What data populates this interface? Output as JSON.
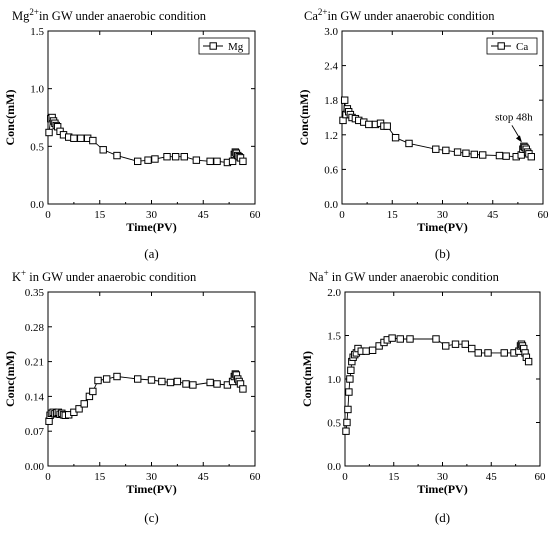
{
  "chart_data": [
    {
      "panel": "(a)",
      "type": "line",
      "title": {
        "ion": "Mg",
        "sup": "2+",
        "rest": "in GW under anaerobic condition"
      },
      "xlabel": "Time(PV)",
      "ylabel": "Conc(mM)",
      "xlim": [
        0,
        60
      ],
      "ylim": [
        0,
        1.5
      ],
      "xticks": [
        "0",
        "15",
        "30",
        "45",
        "60"
      ],
      "yticks": [
        "0.0",
        "0.5",
        "1.0",
        "1.5"
      ],
      "xtick_values": [
        0,
        15,
        30,
        45,
        60
      ],
      "ytick_values": [
        0,
        0.5,
        1.0,
        1.5
      ],
      "legend": "Mg",
      "legend_position": "top-right",
      "grid": false,
      "series": [
        {
          "name": "Mg",
          "x": [
            0.3,
            0.8,
            1.2,
            1.6,
            2.0,
            2.4,
            2.8,
            3.5,
            4.5,
            6,
            7.5,
            9.5,
            11.5,
            13,
            16,
            20,
            26,
            29,
            31,
            34.5,
            37,
            39.5,
            43,
            47,
            49,
            52,
            53.5,
            54,
            54.3,
            54.6,
            55,
            55.4,
            55.8,
            56.5
          ],
          "y": [
            0.62,
            0.74,
            0.75,
            0.72,
            0.7,
            0.68,
            0.67,
            0.63,
            0.6,
            0.58,
            0.57,
            0.57,
            0.57,
            0.55,
            0.47,
            0.42,
            0.37,
            0.38,
            0.39,
            0.41,
            0.41,
            0.41,
            0.38,
            0.37,
            0.37,
            0.36,
            0.37,
            0.43,
            0.45,
            0.44,
            0.42,
            0.41,
            0.4,
            0.37
          ]
        }
      ]
    },
    {
      "panel": "(b)",
      "type": "line",
      "title": {
        "ion": "Ca",
        "sup": "2+",
        "rest": "in GW under anaerobic condition"
      },
      "xlabel": "Time(PV)",
      "ylabel": "Conc(mM)",
      "xlim": [
        0,
        60
      ],
      "ylim": [
        0,
        3.0
      ],
      "xticks": [
        "0",
        "15",
        "30",
        "45",
        "60"
      ],
      "yticks": [
        "0.0",
        "0.6",
        "1.2",
        "1.8",
        "2.4",
        "3.0"
      ],
      "xtick_values": [
        0,
        15,
        30,
        45,
        60
      ],
      "ytick_values": [
        0,
        0.6,
        1.2,
        1.8,
        2.4,
        3.0
      ],
      "legend": "Ca",
      "legend_position": "top-right",
      "grid": false,
      "annotation": {
        "text": "stop 48h",
        "at_x": 54.3,
        "at_y": 1.0
      },
      "series": [
        {
          "name": "Ca",
          "x": [
            0.3,
            0.8,
            1.2,
            1.6,
            2.0,
            2.5,
            3.0,
            4.0,
            5.0,
            6.5,
            8,
            10,
            11.5,
            12.5,
            13.5,
            16,
            20,
            28,
            31,
            34.5,
            37,
            39.5,
            42,
            47,
            49,
            52,
            53.5,
            54,
            54.3,
            54.6,
            55,
            55.4,
            55.8,
            56.5
          ],
          "y": [
            1.45,
            1.8,
            1.55,
            1.65,
            1.6,
            1.55,
            1.5,
            1.48,
            1.45,
            1.42,
            1.38,
            1.38,
            1.4,
            1.35,
            1.35,
            1.15,
            1.05,
            0.95,
            0.93,
            0.9,
            0.88,
            0.86,
            0.85,
            0.84,
            0.83,
            0.82,
            0.85,
            0.95,
            1.0,
            0.98,
            0.95,
            0.9,
            0.87,
            0.82
          ]
        }
      ]
    },
    {
      "panel": "(c)",
      "type": "line",
      "title": {
        "ion": "K",
        "sup": "+",
        "rest": " in GW under anaerobic condition"
      },
      "xlabel": "Time(PV)",
      "ylabel": "Conc(mM)",
      "xlim": [
        0,
        60
      ],
      "ylim": [
        0,
        0.35
      ],
      "xticks": [
        "0",
        "15",
        "30",
        "45",
        "60"
      ],
      "yticks": [
        "0.00",
        "0.07",
        "0.14",
        "0.21",
        "0.28",
        "0.35"
      ],
      "xtick_values": [
        0,
        15,
        30,
        45,
        60
      ],
      "ytick_values": [
        0,
        0.07,
        0.14,
        0.21,
        0.28,
        0.35
      ],
      "grid": false,
      "series": [
        {
          "name": "",
          "x": [
            0.3,
            0.6,
            1.0,
            1.5,
            2.0,
            2.5,
            3.0,
            3.5,
            4.0,
            4.5,
            5.0,
            6.0,
            7.5,
            9.0,
            10.5,
            12,
            13,
            14.5,
            17,
            20,
            26,
            30,
            33,
            35.5,
            37.5,
            40,
            42,
            47,
            49,
            52,
            53.5,
            54,
            54.3,
            54.6,
            55,
            55.4,
            55.8,
            56.5
          ],
          "y": [
            0.09,
            0.102,
            0.106,
            0.108,
            0.105,
            0.107,
            0.108,
            0.104,
            0.106,
            0.103,
            0.102,
            0.103,
            0.108,
            0.115,
            0.125,
            0.14,
            0.15,
            0.172,
            0.175,
            0.18,
            0.175,
            0.173,
            0.17,
            0.168,
            0.17,
            0.165,
            0.163,
            0.168,
            0.165,
            0.163,
            0.17,
            0.18,
            0.185,
            0.183,
            0.175,
            0.17,
            0.165,
            0.155
          ]
        }
      ]
    },
    {
      "panel": "(d)",
      "type": "line",
      "title": {
        "ion": "Na",
        "sup": "+",
        "rest": " in GW under anaerobic condition"
      },
      "xlabel": "Time(PV)",
      "ylabel": "Conc(mM)",
      "xlim": [
        0,
        60
      ],
      "ylim": [
        0,
        2.0
      ],
      "xticks": [
        "0",
        "15",
        "30",
        "45",
        "60"
      ],
      "yticks": [
        "0.0",
        "0.5",
        "1.0",
        "1.5",
        "2.0"
      ],
      "xtick_values": [
        0,
        15,
        30,
        45,
        60
      ],
      "ytick_values": [
        0,
        0.5,
        1.0,
        1.5,
        2.0
      ],
      "grid": false,
      "series": [
        {
          "name": "",
          "x": [
            0.3,
            0.6,
            0.9,
            1.2,
            1.5,
            1.8,
            2.1,
            2.5,
            3.0,
            3.5,
            4.0,
            5.0,
            6.5,
            8.5,
            10.5,
            12,
            13,
            14.5,
            17,
            20,
            28,
            31,
            34,
            37,
            39,
            41,
            44,
            49,
            52,
            53.5,
            54,
            54.3,
            54.6,
            55,
            55.4,
            55.8,
            56.5
          ],
          "y": [
            0.4,
            0.5,
            0.65,
            0.85,
            1.0,
            1.1,
            1.2,
            1.25,
            1.28,
            1.3,
            1.35,
            1.32,
            1.32,
            1.33,
            1.38,
            1.42,
            1.45,
            1.47,
            1.46,
            1.46,
            1.46,
            1.38,
            1.4,
            1.4,
            1.35,
            1.3,
            1.3,
            1.3,
            1.3,
            1.32,
            1.38,
            1.4,
            1.38,
            1.35,
            1.3,
            1.25,
            1.2
          ]
        }
      ]
    }
  ]
}
